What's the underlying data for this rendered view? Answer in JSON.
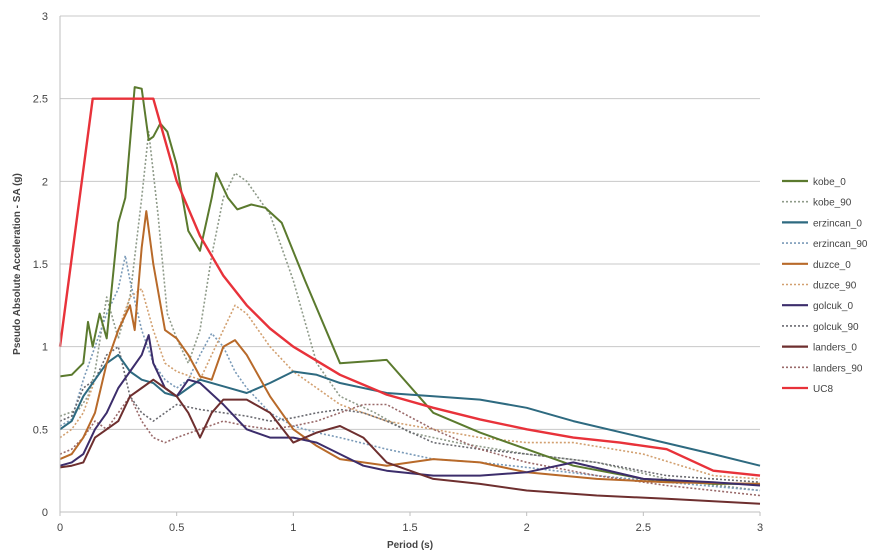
{
  "chart_data": {
    "type": "line",
    "title": "",
    "xlabel": "Period (s)",
    "ylabel": "Pseudo Absolute Acceleration - SA (g)",
    "xlim": [
      0,
      3
    ],
    "ylim": [
      0,
      3
    ],
    "xticks": [
      "0",
      "0.5",
      "1",
      "1.5",
      "2",
      "2.5",
      "3"
    ],
    "yticks": [
      "0",
      "0.5",
      "1",
      "1.5",
      "2",
      "2.5",
      "3"
    ],
    "grid": "horizontal",
    "legend_position": "right",
    "series": [
      {
        "name": "kobe_0",
        "color": "#5b7a2e",
        "style": "solid",
        "points": [
          [
            0,
            0.82
          ],
          [
            0.05,
            0.83
          ],
          [
            0.1,
            0.9
          ],
          [
            0.12,
            1.15
          ],
          [
            0.14,
            1.0
          ],
          [
            0.17,
            1.2
          ],
          [
            0.2,
            1.05
          ],
          [
            0.25,
            1.75
          ],
          [
            0.28,
            1.9
          ],
          [
            0.32,
            2.57
          ],
          [
            0.35,
            2.56
          ],
          [
            0.38,
            2.25
          ],
          [
            0.4,
            2.27
          ],
          [
            0.43,
            2.35
          ],
          [
            0.46,
            2.3
          ],
          [
            0.5,
            2.1
          ],
          [
            0.55,
            1.7
          ],
          [
            0.6,
            1.58
          ],
          [
            0.65,
            1.9
          ],
          [
            0.67,
            2.05
          ],
          [
            0.72,
            1.9
          ],
          [
            0.76,
            1.83
          ],
          [
            0.82,
            1.86
          ],
          [
            0.88,
            1.84
          ],
          [
            0.95,
            1.75
          ],
          [
            1.05,
            1.4
          ],
          [
            1.2,
            0.9
          ],
          [
            1.4,
            0.92
          ],
          [
            1.6,
            0.6
          ],
          [
            1.8,
            0.48
          ],
          [
            2.0,
            0.38
          ],
          [
            2.2,
            0.28
          ],
          [
            2.5,
            0.2
          ],
          [
            2.8,
            0.17
          ],
          [
            3.0,
            0.17
          ]
        ]
      },
      {
        "name": "kobe_90",
        "color": "#8f9b8a",
        "style": "dotted",
        "points": [
          [
            0,
            0.58
          ],
          [
            0.08,
            0.62
          ],
          [
            0.12,
            0.7
          ],
          [
            0.15,
            0.85
          ],
          [
            0.2,
            1.3
          ],
          [
            0.25,
            1.05
          ],
          [
            0.3,
            1.3
          ],
          [
            0.35,
            1.9
          ],
          [
            0.38,
            2.3
          ],
          [
            0.42,
            1.8
          ],
          [
            0.46,
            1.2
          ],
          [
            0.5,
            1.05
          ],
          [
            0.55,
            0.9
          ],
          [
            0.6,
            1.1
          ],
          [
            0.65,
            1.55
          ],
          [
            0.7,
            1.9
          ],
          [
            0.75,
            2.05
          ],
          [
            0.8,
            2.0
          ],
          [
            0.9,
            1.8
          ],
          [
            1.0,
            1.4
          ],
          [
            1.1,
            0.9
          ],
          [
            1.2,
            0.7
          ],
          [
            1.35,
            0.6
          ],
          [
            1.5,
            0.48
          ],
          [
            1.7,
            0.42
          ],
          [
            2.0,
            0.35
          ],
          [
            2.3,
            0.3
          ],
          [
            2.6,
            0.2
          ],
          [
            3.0,
            0.13
          ]
        ]
      },
      {
        "name": "erzincan_0",
        "color": "#2e6a80",
        "style": "solid",
        "points": [
          [
            0,
            0.5
          ],
          [
            0.05,
            0.55
          ],
          [
            0.1,
            0.7
          ],
          [
            0.15,
            0.8
          ],
          [
            0.2,
            0.9
          ],
          [
            0.25,
            0.95
          ],
          [
            0.3,
            0.85
          ],
          [
            0.35,
            0.8
          ],
          [
            0.4,
            0.78
          ],
          [
            0.45,
            0.72
          ],
          [
            0.5,
            0.7
          ],
          [
            0.55,
            0.75
          ],
          [
            0.6,
            0.8
          ],
          [
            0.7,
            0.76
          ],
          [
            0.8,
            0.72
          ],
          [
            0.9,
            0.78
          ],
          [
            1.0,
            0.85
          ],
          [
            1.1,
            0.83
          ],
          [
            1.2,
            0.78
          ],
          [
            1.4,
            0.72
          ],
          [
            1.6,
            0.7
          ],
          [
            1.8,
            0.68
          ],
          [
            2.0,
            0.63
          ],
          [
            2.2,
            0.55
          ],
          [
            2.5,
            0.45
          ],
          [
            2.8,
            0.35
          ],
          [
            3.0,
            0.28
          ]
        ]
      },
      {
        "name": "erzincan_90",
        "color": "#7a9ab8",
        "style": "dotted",
        "points": [
          [
            0,
            0.52
          ],
          [
            0.05,
            0.56
          ],
          [
            0.1,
            0.8
          ],
          [
            0.15,
            1.0
          ],
          [
            0.2,
            1.2
          ],
          [
            0.25,
            1.35
          ],
          [
            0.28,
            1.55
          ],
          [
            0.3,
            1.4
          ],
          [
            0.35,
            1.1
          ],
          [
            0.4,
            0.9
          ],
          [
            0.45,
            0.8
          ],
          [
            0.5,
            0.75
          ],
          [
            0.55,
            0.8
          ],
          [
            0.6,
            0.95
          ],
          [
            0.65,
            1.08
          ],
          [
            0.7,
            1.0
          ],
          [
            0.75,
            0.85
          ],
          [
            0.8,
            0.75
          ],
          [
            0.9,
            0.6
          ],
          [
            1.0,
            0.52
          ],
          [
            1.1,
            0.48
          ],
          [
            1.2,
            0.45
          ],
          [
            1.4,
            0.38
          ],
          [
            1.6,
            0.32
          ],
          [
            1.8,
            0.3
          ],
          [
            2.0,
            0.27
          ],
          [
            2.3,
            0.22
          ],
          [
            2.6,
            0.18
          ],
          [
            3.0,
            0.13
          ]
        ]
      },
      {
        "name": "duzce_0",
        "color": "#b86a2a",
        "style": "solid",
        "points": [
          [
            0,
            0.32
          ],
          [
            0.05,
            0.35
          ],
          [
            0.1,
            0.45
          ],
          [
            0.15,
            0.6
          ],
          [
            0.2,
            0.9
          ],
          [
            0.25,
            1.1
          ],
          [
            0.3,
            1.25
          ],
          [
            0.32,
            1.1
          ],
          [
            0.35,
            1.6
          ],
          [
            0.37,
            1.82
          ],
          [
            0.4,
            1.5
          ],
          [
            0.45,
            1.1
          ],
          [
            0.5,
            1.05
          ],
          [
            0.55,
            0.95
          ],
          [
            0.6,
            0.82
          ],
          [
            0.65,
            0.8
          ],
          [
            0.7,
            1.0
          ],
          [
            0.75,
            1.04
          ],
          [
            0.8,
            0.95
          ],
          [
            0.9,
            0.7
          ],
          [
            1.0,
            0.5
          ],
          [
            1.1,
            0.4
          ],
          [
            1.2,
            0.32
          ],
          [
            1.4,
            0.28
          ],
          [
            1.6,
            0.32
          ],
          [
            1.8,
            0.3
          ],
          [
            2.0,
            0.24
          ],
          [
            2.3,
            0.2
          ],
          [
            2.6,
            0.18
          ],
          [
            3.0,
            0.17
          ]
        ]
      },
      {
        "name": "duzce_90",
        "color": "#d2a070",
        "style": "dotted",
        "points": [
          [
            0,
            0.45
          ],
          [
            0.05,
            0.5
          ],
          [
            0.1,
            0.6
          ],
          [
            0.15,
            0.8
          ],
          [
            0.2,
            0.9
          ],
          [
            0.25,
            1.1
          ],
          [
            0.3,
            1.3
          ],
          [
            0.35,
            1.35
          ],
          [
            0.4,
            1.1
          ],
          [
            0.45,
            0.9
          ],
          [
            0.5,
            0.85
          ],
          [
            0.6,
            0.8
          ],
          [
            0.7,
            1.1
          ],
          [
            0.75,
            1.25
          ],
          [
            0.8,
            1.2
          ],
          [
            0.9,
            1.0
          ],
          [
            1.0,
            0.85
          ],
          [
            1.1,
            0.75
          ],
          [
            1.2,
            0.65
          ],
          [
            1.4,
            0.55
          ],
          [
            1.6,
            0.5
          ],
          [
            1.8,
            0.45
          ],
          [
            2.0,
            0.42
          ],
          [
            2.2,
            0.42
          ],
          [
            2.5,
            0.35
          ],
          [
            2.8,
            0.22
          ],
          [
            3.0,
            0.2
          ]
        ]
      },
      {
        "name": "golcuk_0",
        "color": "#3c2d6b",
        "style": "solid",
        "points": [
          [
            0,
            0.28
          ],
          [
            0.05,
            0.3
          ],
          [
            0.1,
            0.35
          ],
          [
            0.15,
            0.5
          ],
          [
            0.2,
            0.6
          ],
          [
            0.25,
            0.75
          ],
          [
            0.3,
            0.85
          ],
          [
            0.35,
            0.95
          ],
          [
            0.38,
            1.07
          ],
          [
            0.4,
            0.9
          ],
          [
            0.45,
            0.75
          ],
          [
            0.5,
            0.7
          ],
          [
            0.55,
            0.8
          ],
          [
            0.6,
            0.78
          ],
          [
            0.7,
            0.65
          ],
          [
            0.8,
            0.5
          ],
          [
            0.9,
            0.45
          ],
          [
            1.0,
            0.45
          ],
          [
            1.1,
            0.42
          ],
          [
            1.2,
            0.35
          ],
          [
            1.3,
            0.28
          ],
          [
            1.4,
            0.25
          ],
          [
            1.6,
            0.22
          ],
          [
            1.8,
            0.22
          ],
          [
            2.0,
            0.24
          ],
          [
            2.2,
            0.3
          ],
          [
            2.5,
            0.2
          ],
          [
            2.8,
            0.18
          ],
          [
            3.0,
            0.16
          ]
        ]
      },
      {
        "name": "golcuk_90",
        "color": "#6a6a70",
        "style": "dotted",
        "points": [
          [
            0,
            0.55
          ],
          [
            0.05,
            0.58
          ],
          [
            0.1,
            0.75
          ],
          [
            0.15,
            0.8
          ],
          [
            0.2,
            0.95
          ],
          [
            0.25,
            1.0
          ],
          [
            0.3,
            0.7
          ],
          [
            0.35,
            0.6
          ],
          [
            0.4,
            0.55
          ],
          [
            0.45,
            0.6
          ],
          [
            0.5,
            0.65
          ],
          [
            0.6,
            0.62
          ],
          [
            0.7,
            0.6
          ],
          [
            0.8,
            0.58
          ],
          [
            0.9,
            0.55
          ],
          [
            1.0,
            0.57
          ],
          [
            1.1,
            0.6
          ],
          [
            1.2,
            0.62
          ],
          [
            1.3,
            0.6
          ],
          [
            1.4,
            0.55
          ],
          [
            1.6,
            0.42
          ],
          [
            1.8,
            0.38
          ],
          [
            2.0,
            0.35
          ],
          [
            2.3,
            0.3
          ],
          [
            2.6,
            0.22
          ],
          [
            3.0,
            0.18
          ]
        ]
      },
      {
        "name": "landers_0",
        "color": "#6e2f2f",
        "style": "solid",
        "points": [
          [
            0,
            0.27
          ],
          [
            0.05,
            0.28
          ],
          [
            0.1,
            0.3
          ],
          [
            0.15,
            0.45
          ],
          [
            0.2,
            0.5
          ],
          [
            0.25,
            0.55
          ],
          [
            0.3,
            0.7
          ],
          [
            0.35,
            0.75
          ],
          [
            0.4,
            0.8
          ],
          [
            0.45,
            0.75
          ],
          [
            0.5,
            0.7
          ],
          [
            0.55,
            0.6
          ],
          [
            0.6,
            0.45
          ],
          [
            0.65,
            0.6
          ],
          [
            0.7,
            0.68
          ],
          [
            0.8,
            0.68
          ],
          [
            0.9,
            0.6
          ],
          [
            1.0,
            0.42
          ],
          [
            1.1,
            0.48
          ],
          [
            1.2,
            0.52
          ],
          [
            1.3,
            0.45
          ],
          [
            1.4,
            0.3
          ],
          [
            1.6,
            0.2
          ],
          [
            1.8,
            0.17
          ],
          [
            2.0,
            0.13
          ],
          [
            2.3,
            0.1
          ],
          [
            2.6,
            0.08
          ],
          [
            3.0,
            0.05
          ]
        ]
      },
      {
        "name": "landers_90",
        "color": "#9a6a6a",
        "style": "dotted",
        "points": [
          [
            0,
            0.35
          ],
          [
            0.05,
            0.38
          ],
          [
            0.1,
            0.45
          ],
          [
            0.15,
            0.55
          ],
          [
            0.2,
            0.5
          ],
          [
            0.25,
            0.6
          ],
          [
            0.3,
            0.7
          ],
          [
            0.35,
            0.55
          ],
          [
            0.4,
            0.45
          ],
          [
            0.45,
            0.42
          ],
          [
            0.5,
            0.45
          ],
          [
            0.6,
            0.5
          ],
          [
            0.7,
            0.55
          ],
          [
            0.8,
            0.52
          ],
          [
            0.9,
            0.5
          ],
          [
            1.0,
            0.52
          ],
          [
            1.1,
            0.55
          ],
          [
            1.2,
            0.6
          ],
          [
            1.3,
            0.65
          ],
          [
            1.4,
            0.65
          ],
          [
            1.6,
            0.5
          ],
          [
            1.8,
            0.38
          ],
          [
            2.0,
            0.3
          ],
          [
            2.3,
            0.22
          ],
          [
            2.6,
            0.16
          ],
          [
            3.0,
            0.1
          ]
        ]
      },
      {
        "name": "UC8",
        "color": "#e8323a",
        "style": "solid-thick",
        "points": [
          [
            0,
            1.0
          ],
          [
            0.14,
            2.5
          ],
          [
            0.4,
            2.5
          ],
          [
            0.5,
            2.0
          ],
          [
            0.6,
            1.67
          ],
          [
            0.7,
            1.43
          ],
          [
            0.8,
            1.25
          ],
          [
            0.9,
            1.11
          ],
          [
            1.0,
            1.0
          ],
          [
            1.2,
            0.83
          ],
          [
            1.4,
            0.71
          ],
          [
            1.6,
            0.63
          ],
          [
            1.8,
            0.56
          ],
          [
            2.0,
            0.5
          ],
          [
            2.2,
            0.45
          ],
          [
            2.4,
            0.42
          ],
          [
            2.6,
            0.38
          ],
          [
            2.8,
            0.25
          ],
          [
            3.0,
            0.22
          ]
        ]
      }
    ]
  }
}
